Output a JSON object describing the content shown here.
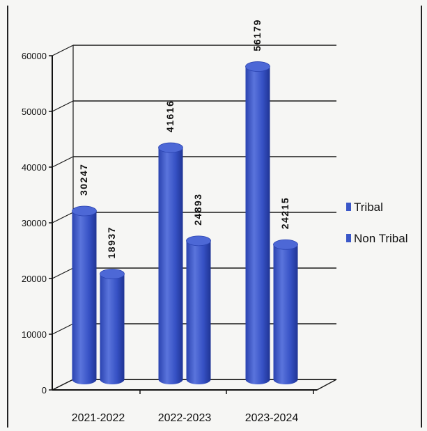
{
  "chart_data": {
    "type": "bar",
    "style": "3d-cylinder",
    "categories": [
      "2021-2022",
      "2022-2023",
      "2023-2024"
    ],
    "series": [
      {
        "name": "Tribal",
        "values": [
          30247,
          41616,
          56179
        ]
      },
      {
        "name": "Non Tribal",
        "values": [
          18937,
          24893,
          24215
        ]
      }
    ],
    "data_labels": {
      "Tribal": [
        "30247",
        "41616",
        "56179"
      ],
      "Non Tribal": [
        "18937",
        "24893",
        "24215"
      ]
    },
    "yticks": [
      "0",
      "10000",
      "20000",
      "30000",
      "40000",
      "50000",
      "60000"
    ],
    "ylim": [
      0,
      60000
    ],
    "grid": true,
    "legend_position": "right",
    "colors": {
      "bar": "#3a57c8",
      "bar_dark": "#22379a",
      "bar_light": "#6f86e0",
      "grid": "#1a1a1a",
      "text": "#111111"
    }
  }
}
